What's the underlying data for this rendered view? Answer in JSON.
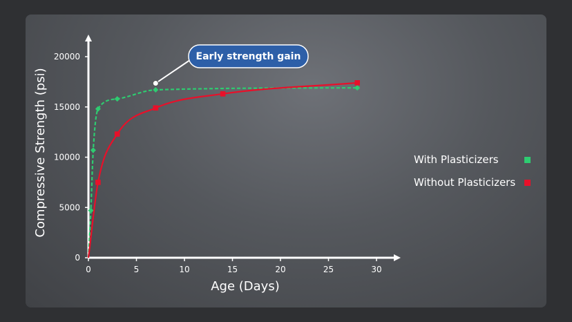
{
  "chart_data": {
    "type": "line",
    "xlabel": "Age (Days)",
    "ylabel": "Compressive Strength (psi)",
    "xlim": [
      0,
      30
    ],
    "ylim": [
      0,
      20000
    ],
    "x_ticks": [
      0,
      5,
      10,
      15,
      20,
      25,
      30
    ],
    "y_ticks": [
      0,
      5000,
      10000,
      15000,
      20000
    ],
    "grid": false,
    "legend_position": "right",
    "series": [
      {
        "name": "With Plasticizers",
        "color": "#2ecc71",
        "line_style": "dashed",
        "marker": "diamond",
        "x": [
          0,
          0.25,
          0.5,
          1,
          3,
          7,
          28
        ],
        "y": [
          0,
          4700,
          10700,
          14800,
          15800,
          16700,
          16900
        ]
      },
      {
        "name": "Without Plasticizers",
        "color": "#e8102a",
        "line_style": "solid",
        "marker": "square",
        "x": [
          0,
          1,
          3,
          7,
          14,
          28
        ],
        "y": [
          0,
          7500,
          12300,
          14900,
          16300,
          17400
        ]
      }
    ],
    "annotations": [
      {
        "text": "Early strength gain",
        "x": 7,
        "y": 16800,
        "color": "#2d5fa8"
      }
    ]
  }
}
